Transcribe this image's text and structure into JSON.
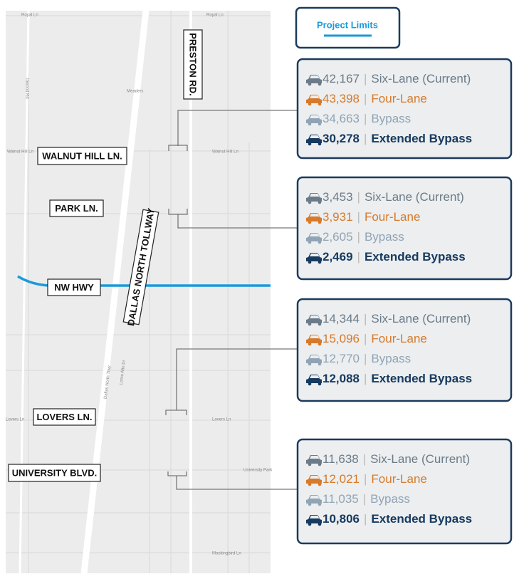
{
  "legend": {
    "title": "Project Limits"
  },
  "map": {
    "street_labels": [
      "PRESTON RD.",
      "WALNUT HILL LN.",
      "PARK LN.",
      "NW HWY",
      "DALLAS NORTH TOLLWAY",
      "LOVERS LN.",
      "UNIVERSITY BLVD."
    ],
    "small_labels": [
      "Royal Ln",
      "Royal Ln",
      "Meaders",
      "Walnut Hill Ln",
      "Walnut Hill Ln",
      "Inwood Rd",
      "Lovers Ln",
      "Lovers Ln",
      "University Park",
      "Mockingbird Ln",
      "Dallas North Tlwy",
      "Lomo Alto Dr"
    ]
  },
  "boxes": [
    {
      "rows": [
        {
          "count": "42,167",
          "label": "Six-Lane (Current)"
        },
        {
          "count": "43,398",
          "label": "Four-Lane"
        },
        {
          "count": "34,663",
          "label": "Bypass"
        },
        {
          "count": "30,278",
          "label": "Extended Bypass"
        }
      ]
    },
    {
      "rows": [
        {
          "count": "3,453",
          "label": "Six-Lane (Current)"
        },
        {
          "count": "3,931",
          "label": "Four-Lane"
        },
        {
          "count": "2,605",
          "label": "Bypass"
        },
        {
          "count": "2,469",
          "label": "Extended Bypass"
        }
      ]
    },
    {
      "rows": [
        {
          "count": "14,344",
          "label": "Six-Lane (Current)"
        },
        {
          "count": "15,096",
          "label": "Four-Lane"
        },
        {
          "count": "12,770",
          "label": "Bypass"
        },
        {
          "count": "12,088",
          "label": "Extended Bypass"
        }
      ]
    },
    {
      "rows": [
        {
          "count": "11,638",
          "label": "Six-Lane (Current)"
        },
        {
          "count": "12,021",
          "label": "Four-Lane"
        },
        {
          "count": "11,035",
          "label": "Bypass"
        },
        {
          "count": "10,806",
          "label": "Extended Bypass"
        }
      ]
    }
  ]
}
